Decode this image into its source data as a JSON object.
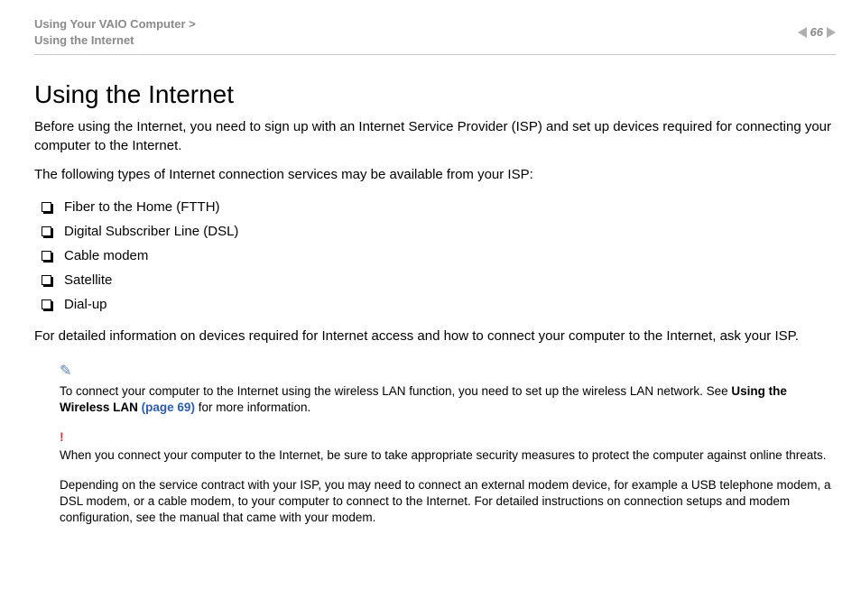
{
  "header": {
    "breadcrumb_line1": "Using Your VAIO Computer >",
    "breadcrumb_line2": "Using the Internet",
    "page_number": "66"
  },
  "title": "Using the Internet",
  "intro_p1": "Before using the Internet, you need to sign up with an Internet Service Provider (ISP) and set up devices required for connecting your computer to the Internet.",
  "intro_p2": "The following types of Internet connection services may be available from your ISP:",
  "bullets": [
    "Fiber to the Home (FTTH)",
    "Digital Subscriber Line (DSL)",
    "Cable modem",
    "Satellite",
    "Dial-up"
  ],
  "after_list": "For detailed information on devices required for Internet access and how to connect your computer to the Internet, ask your ISP.",
  "note1_pre": "To connect your computer to the Internet using the wireless LAN function, you need to set up the wireless LAN network. See ",
  "note1_link_bold": "Using the Wireless LAN ",
  "note1_link_page": "(page 69)",
  "note1_post": " for more information.",
  "note2": "When you connect your computer to the Internet, be sure to take appropriate security measures to protect the computer against online threats.",
  "note3": "Depending on the service contract with your ISP, you may need to connect an external modem device, for example a USB telephone modem, a DSL modem, or a cable modem, to your computer to connect to the Internet. For detailed instructions on connection setups and modem configuration, see the manual that came with your modem.",
  "icons": {
    "pencil": "✎",
    "warn": "!"
  },
  "colors": {
    "text_muted": "#8a8a8a",
    "link": "#2a5db0",
    "note_icon": "#5a7fb0",
    "warn_icon": "#d04040",
    "rule": "#c8c8c8"
  }
}
